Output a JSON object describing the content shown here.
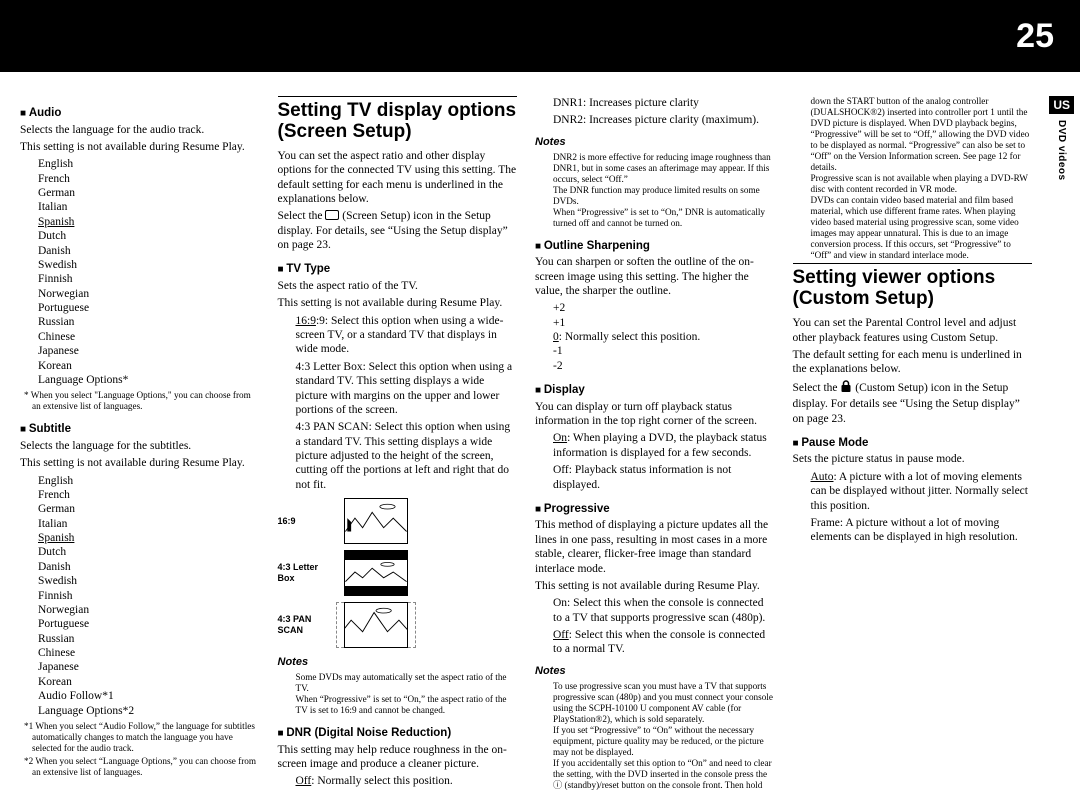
{
  "pageNumber": "25",
  "regionTag": "US",
  "sideLabel": "DVD videos",
  "col1": {
    "audio": {
      "head": "Audio",
      "desc1": "Selects the language for the audio track.",
      "desc2": "This setting is not available during Resume Play.",
      "langs": [
        "English",
        "French",
        "German",
        "Italian",
        "Spanish",
        "Dutch",
        "Danish",
        "Swedish",
        "Finnish",
        "Norwegian",
        "Portuguese",
        "Russian",
        "Chinese",
        "Japanese",
        "Korean",
        "Language Options*"
      ],
      "underlineIndex": 4,
      "foot": "*  When you select \"Language Options,\" you can choose from an extensive list of languages."
    },
    "subtitle": {
      "head": "Subtitle",
      "desc1": "Selects the language for the subtitles.",
      "desc2": "This setting is not available during Resume Play.",
      "langs": [
        "English",
        "French",
        "German",
        "Italian",
        "Spanish",
        "Dutch",
        "Danish",
        "Swedish",
        "Finnish",
        "Norwegian",
        "Portuguese",
        "Russian",
        "Chinese",
        "Japanese",
        "Korean",
        "Audio Follow*1",
        "Language Options*2"
      ],
      "underlineIndex": 4,
      "foot1": "*1 When you select “Audio Follow,” the language for subtitles automatically changes to match the language you have selected for the audio track.",
      "foot2": "*2 When you select “Language Options,” you can choose from an extensive list of languages."
    }
  },
  "col2": {
    "bigHead": "Setting TV display options (Screen Setup)",
    "intro1": "You can set the aspect ratio and other display options for the connected TV using this setting. The default setting for each menu is underlined in the explanations below.",
    "intro2a": "Select the ",
    "intro2b": " (Screen Setup) icon in the Setup display. For details, see “Using the Setup display” on page 23.",
    "tvtype": {
      "head": "TV Type",
      "l1": "Sets the aspect ratio of the TV.",
      "l2": "This setting is not available during Resume Play.",
      "o1": "16:9: Select this option when using a wide-screen TV, or a standard TV that displays in wide mode.",
      "o2": "4:3 Letter Box: Select this option when using a standard TV. This setting displays a wide picture with margins on the upper and lower portions of the screen.",
      "o3": "4:3 PAN SCAN: Select this option when using a standard TV. This setting displays a wide picture adjusted to the height of the screen, cutting off the portions at left and right that do not fit.",
      "lab1": "16:9",
      "lab2": "4:3 Letter Box",
      "lab3": "4:3 PAN SCAN"
    },
    "notes": {
      "head": "Notes",
      "n1": "Some DVDs may automatically set the aspect ratio of the TV.",
      "n2": "When “Progressive” is set to “On,” the aspect ratio of the TV is set to 16:9 and cannot be changed."
    }
  },
  "col3": {
    "dnr": {
      "head": "DNR (Digital Noise Reduction)",
      "l1": "This setting may help reduce roughness in the on-screen image and produce a cleaner picture.",
      "o1a": "Off",
      "o1b": ": Normally select this position.",
      "o2": "DNR1: Increases picture clarity",
      "o3": "DNR2: Increases picture clarity (maximum)."
    },
    "dnrnotes": {
      "head": "Notes",
      "n1": "DNR2 is more effective for reducing image roughness than DNR1, but in some cases an afterimage may appear. If this occurs, select “Off.”",
      "n2": "The DNR function may produce limited results on some DVDs.",
      "n3": "When “Progressive” is set to “On,” DNR is automatically turned off and cannot be turned on."
    },
    "outline": {
      "head": "Outline Sharpening",
      "l1": "You can sharpen or soften the outline of the on-screen image using this setting. The higher the value, the sharper the outline.",
      "vals": [
        "+2",
        "+1",
        "0: Normally select this position.",
        "-1",
        "-2"
      ],
      "underlineValIndex": 2,
      "underlinePrefix": "0"
    },
    "display": {
      "head": "Display",
      "l1": "You can display or turn off playback status information in the top right corner of the screen.",
      "o1a": "On",
      "o1b": ": When playing a DVD, the playback status information is displayed for a few seconds.",
      "o2": "Off: Playback status information is not displayed."
    },
    "prog": {
      "head": "Progressive",
      "l1": "This method of displaying a picture updates all the lines in one pass, resulting in most cases in a more stable, clearer, flicker-free image than standard interlace mode.",
      "l2": "This setting is not available during Resume Play.",
      "o1": "On: Select this when the console is connected to a TV that supports progressive scan (480p).",
      "o2a": "Off",
      "o2b": ": Select this when the console is connected to a normal TV."
    }
  },
  "col4": {
    "prognotes": {
      "head": "Notes",
      "n1": "To use progressive scan you must have a TV that supports progressive scan (480p) and you must connect your console using the SCPH-10100 U component AV cable (for PlayStation®2), which is sold separately.",
      "n2": "If you set “Progressive” to “On” without the necessary equipment, picture quality may be reduced, or the picture may not be displayed.",
      "n3": "If you accidentally set this option to “On” and need to clear the setting, with the DVD inserted in the console press the ⓘ (standby)/reset button on the console front. Then hold down the START button of the analog controller (DUALSHOCK®2) inserted into controller port 1 until the DVD picture is displayed. When DVD playback begins, “Progressive” will be set to “Off,” allowing the DVD video to be displayed as normal. “Progressive” can also be set to “Off” on the Version Information screen. See page 12 for details.",
      "n4": "Progressive scan is not available when playing a DVD-RW disc with content recorded in VR mode.",
      "n5": "DVDs can contain video based material and film based material, which use different frame rates. When playing video based material using progressive scan, some video images may appear unnatural. This is due to an image conversion process. If this occurs, set “Progressive” to “Off” and view in standard interlace mode."
    },
    "bigHead": "Setting viewer options (Custom Setup)",
    "intro1": "You can set the Parental Control level and adjust other playback features using Custom Setup.",
    "intro2": "The default setting for each menu is underlined in the explanations below.",
    "intro3a": "Select the ",
    "intro3b": " (Custom Setup) icon in the Setup display. For details see “Using the Setup display” on page 23.",
    "pause": {
      "head": "Pause Mode",
      "l1": "Sets the picture status in pause mode.",
      "o1a": "Auto",
      "o1b": ": A picture with a lot of moving elements can be displayed without jitter. Normally select this position.",
      "o2": "Frame: A picture without a lot of moving elements can be displayed in high resolution."
    }
  }
}
